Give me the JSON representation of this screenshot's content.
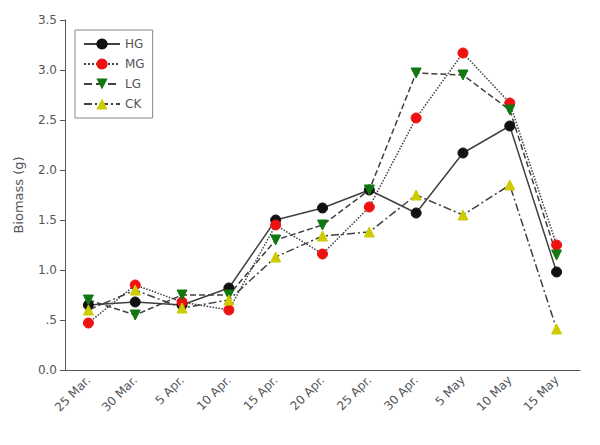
{
  "chart_data": {
    "type": "line",
    "categories": [
      "25 Mar.",
      "30 Mar.",
      "5 Apr.",
      "10 Apr.",
      "15 Apr.",
      "20 Apr.",
      "25 Apr.",
      "30 Apr.",
      "5 May",
      "10 May",
      "15 May"
    ],
    "series": [
      {
        "name": "HG",
        "color": "#111111",
        "marker": "circle",
        "line_style": "solid",
        "values": [
          0.65,
          0.68,
          0.65,
          0.82,
          1.5,
          1.62,
          1.8,
          1.57,
          2.17,
          2.44,
          0.98
        ]
      },
      {
        "name": "MG",
        "color": "#ee1111",
        "marker": "circle",
        "line_style": "dotted",
        "values": [
          0.47,
          0.85,
          0.68,
          0.6,
          1.45,
          1.16,
          1.63,
          2.52,
          3.17,
          2.67,
          1.25
        ]
      },
      {
        "name": "LG",
        "color": "#117711",
        "marker": "triangle_down",
        "line_style": "dashed",
        "values": [
          0.7,
          0.55,
          0.75,
          0.75,
          1.3,
          1.45,
          1.8,
          2.97,
          2.95,
          2.6,
          1.15
        ]
      },
      {
        "name": "CK",
        "color": "#cccc00",
        "marker": "triangle_up",
        "line_style": "dashdot",
        "values": [
          0.6,
          0.8,
          0.62,
          0.7,
          1.13,
          1.34,
          1.38,
          1.75,
          1.55,
          1.85,
          0.41
        ]
      }
    ],
    "color": "#404040",
    "ylabel": "Biomass (g)",
    "ylim": [
      0.0,
      3.5
    ],
    "yticks": [
      {
        "value": 0.0,
        "label": "0.0"
      },
      {
        "value": 0.5,
        "label": ".5"
      },
      {
        "value": 1.0,
        "label": "1.0"
      },
      1.5,
      {
        "value": 2.0,
        "label": "2.0"
      },
      2.5,
      {
        "value": 3.0,
        "label": "3.0"
      },
      3.5
    ],
    "grid": false,
    "legend": "upper left"
  }
}
